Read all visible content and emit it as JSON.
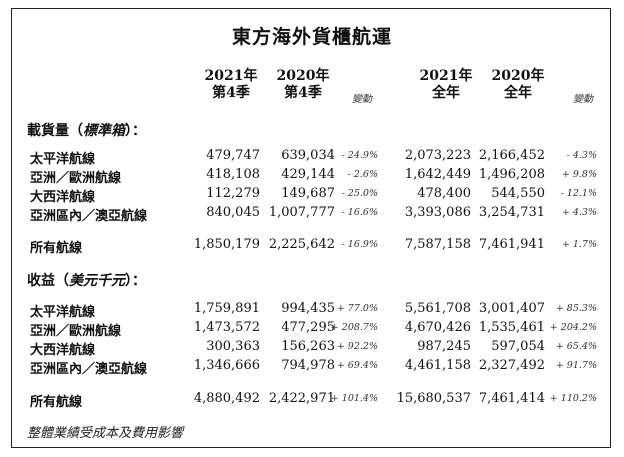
{
  "title": "東方海外貨櫃航運",
  "headers": {
    "q_2021": [
      "2021年",
      "第4季"
    ],
    "q_2020": [
      "2020年",
      "第4季"
    ],
    "q_change": "變動",
    "fy_2021": [
      "2021年",
      "全年"
    ],
    "fy_2020": [
      "2020年",
      "全年"
    ],
    "fy_change": "變動"
  },
  "volume_section": {
    "label": "載貨量（",
    "label_italic": "標準箱",
    "label_end": "）：",
    "rows": [
      {
        "name": "太平洋航線",
        "q2021": "479,747",
        "q2020": "639,034",
        "qchg": "- 24.9%",
        "fy2021": "2,073,223",
        "fy2020": "2,166,452",
        "fychg": "- 4.3%"
      },
      {
        "name": "亞洲／歐洲航線",
        "q2021": "418,108",
        "q2020": "429,144",
        "qchg": "- 2.6%",
        "fy2021": "1,642,449",
        "fy2020": "1,496,208",
        "fychg": "+ 9.8%"
      },
      {
        "name": "大西洋航線",
        "q2021": "112,279",
        "q2020": "149,687",
        "qchg": "- 25.0%",
        "fy2021": "478,400",
        "fy2020": "544,550",
        "fychg": "- 12.1%"
      },
      {
        "name": "亞洲區內／澳亞航線",
        "q2021": "840,045",
        "q2020": "1,007,777",
        "qchg": "- 16.6%",
        "fy2021": "3,393,086",
        "fy2020": "3,254,731",
        "fychg": "+ 4.3%"
      }
    ],
    "total": {
      "name": "所有航線",
      "q2021": "1,850,179",
      "q2020": "2,225,642",
      "qchg": "- 16.9%",
      "fy2021": "7,587,158",
      "fy2020": "7,461,941",
      "fychg": "+ 1.7%"
    }
  },
  "revenue_section": {
    "label": "收益（",
    "label_italic": "美元千元",
    "label_end": "）：",
    "rows": [
      {
        "name": "太平洋航線",
        "q2021": "1,759,891",
        "q2020": "994,435",
        "qchg": "+ 77.0%",
        "fy2021": "5,561,708",
        "fy2020": "3,001,407",
        "fychg": "+ 85.3%"
      },
      {
        "name": "亞洲／歐洲航線",
        "q2021": "1,473,572",
        "q2020": "477,295",
        "qchg": "+ 208.7%",
        "fy2021": "4,670,426",
        "fy2020": "1,535,461",
        "fychg": "+ 204.2%"
      },
      {
        "name": "大西洋航線",
        "q2021": "300,363",
        "q2020": "156,263",
        "qchg": "+ 92.2%",
        "fy2021": "987,245",
        "fy2020": "597,054",
        "fychg": "+ 65.4%"
      },
      {
        "name": "亞洲區內／澳亞航線",
        "q2021": "1,346,666",
        "q2020": "794,978",
        "qchg": "+ 69.4%",
        "fy2021": "4,461,158",
        "fy2020": "2,327,492",
        "fychg": "+ 91.7%"
      }
    ],
    "total": {
      "name": "所有航線",
      "q2021": "4,880,492",
      "q2020": "2,422,971",
      "qchg": "+ 101.4%",
      "fy2021": "15,680,537",
      "fy2020": "7,461,414",
      "fychg": "+ 110.2%"
    }
  },
  "footnote": "整體業績受成本及費用影響"
}
